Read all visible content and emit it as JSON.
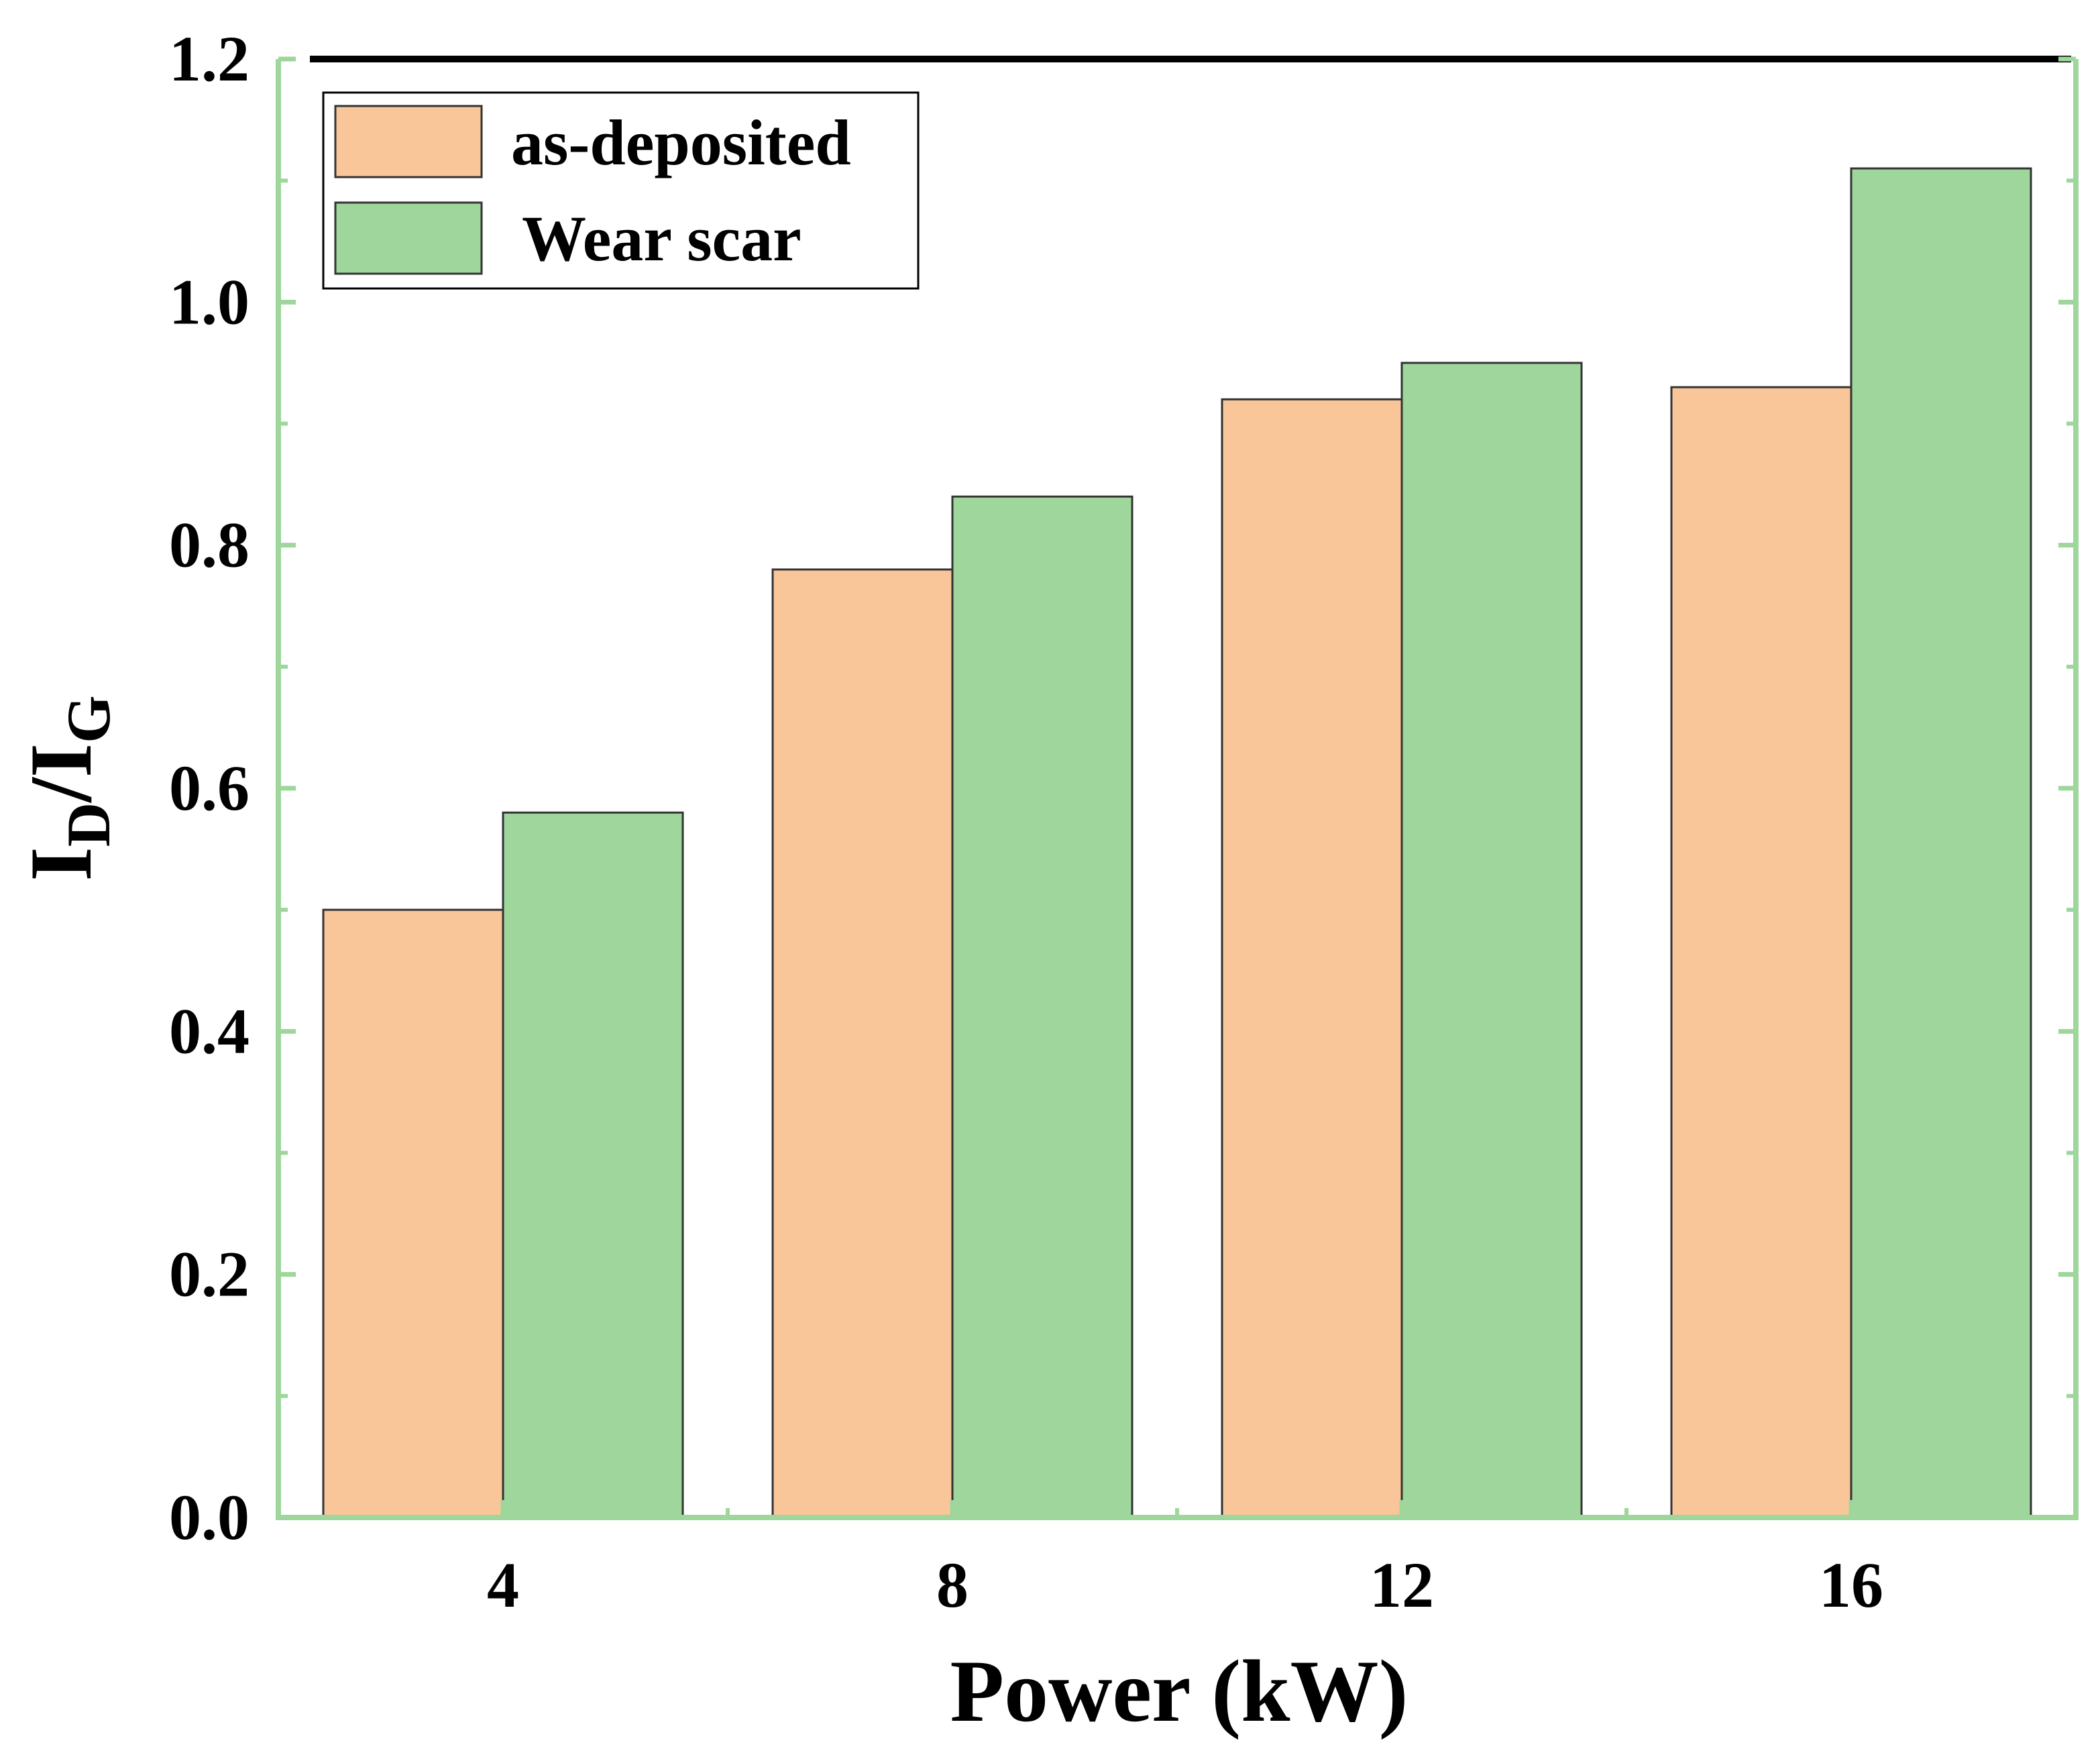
{
  "chart_data": {
    "type": "bar",
    "categories": [
      "4",
      "8",
      "12",
      "16"
    ],
    "series": [
      {
        "name": "as-deposited",
        "values": [
          0.5,
          0.78,
          0.92,
          0.93
        ],
        "color": "#f9c69a"
      },
      {
        "name": "Wear scar",
        "values": [
          0.58,
          0.84,
          0.95,
          1.11
        ],
        "color": "#9ed69c"
      }
    ],
    "title": "",
    "xlabel": "Power (kW)",
    "ylabel": {
      "main": "I",
      "sub1": "D",
      "slash": "/I",
      "sub2": "G"
    },
    "ylim": [
      0,
      1.2
    ],
    "yticks": [
      "0.0",
      "0.2",
      "0.4",
      "0.6",
      "0.8",
      "1.0",
      "1.2"
    ],
    "frame_color": "#9ed69c",
    "top_border_color": "#000000",
    "legend_position": "top-left"
  }
}
